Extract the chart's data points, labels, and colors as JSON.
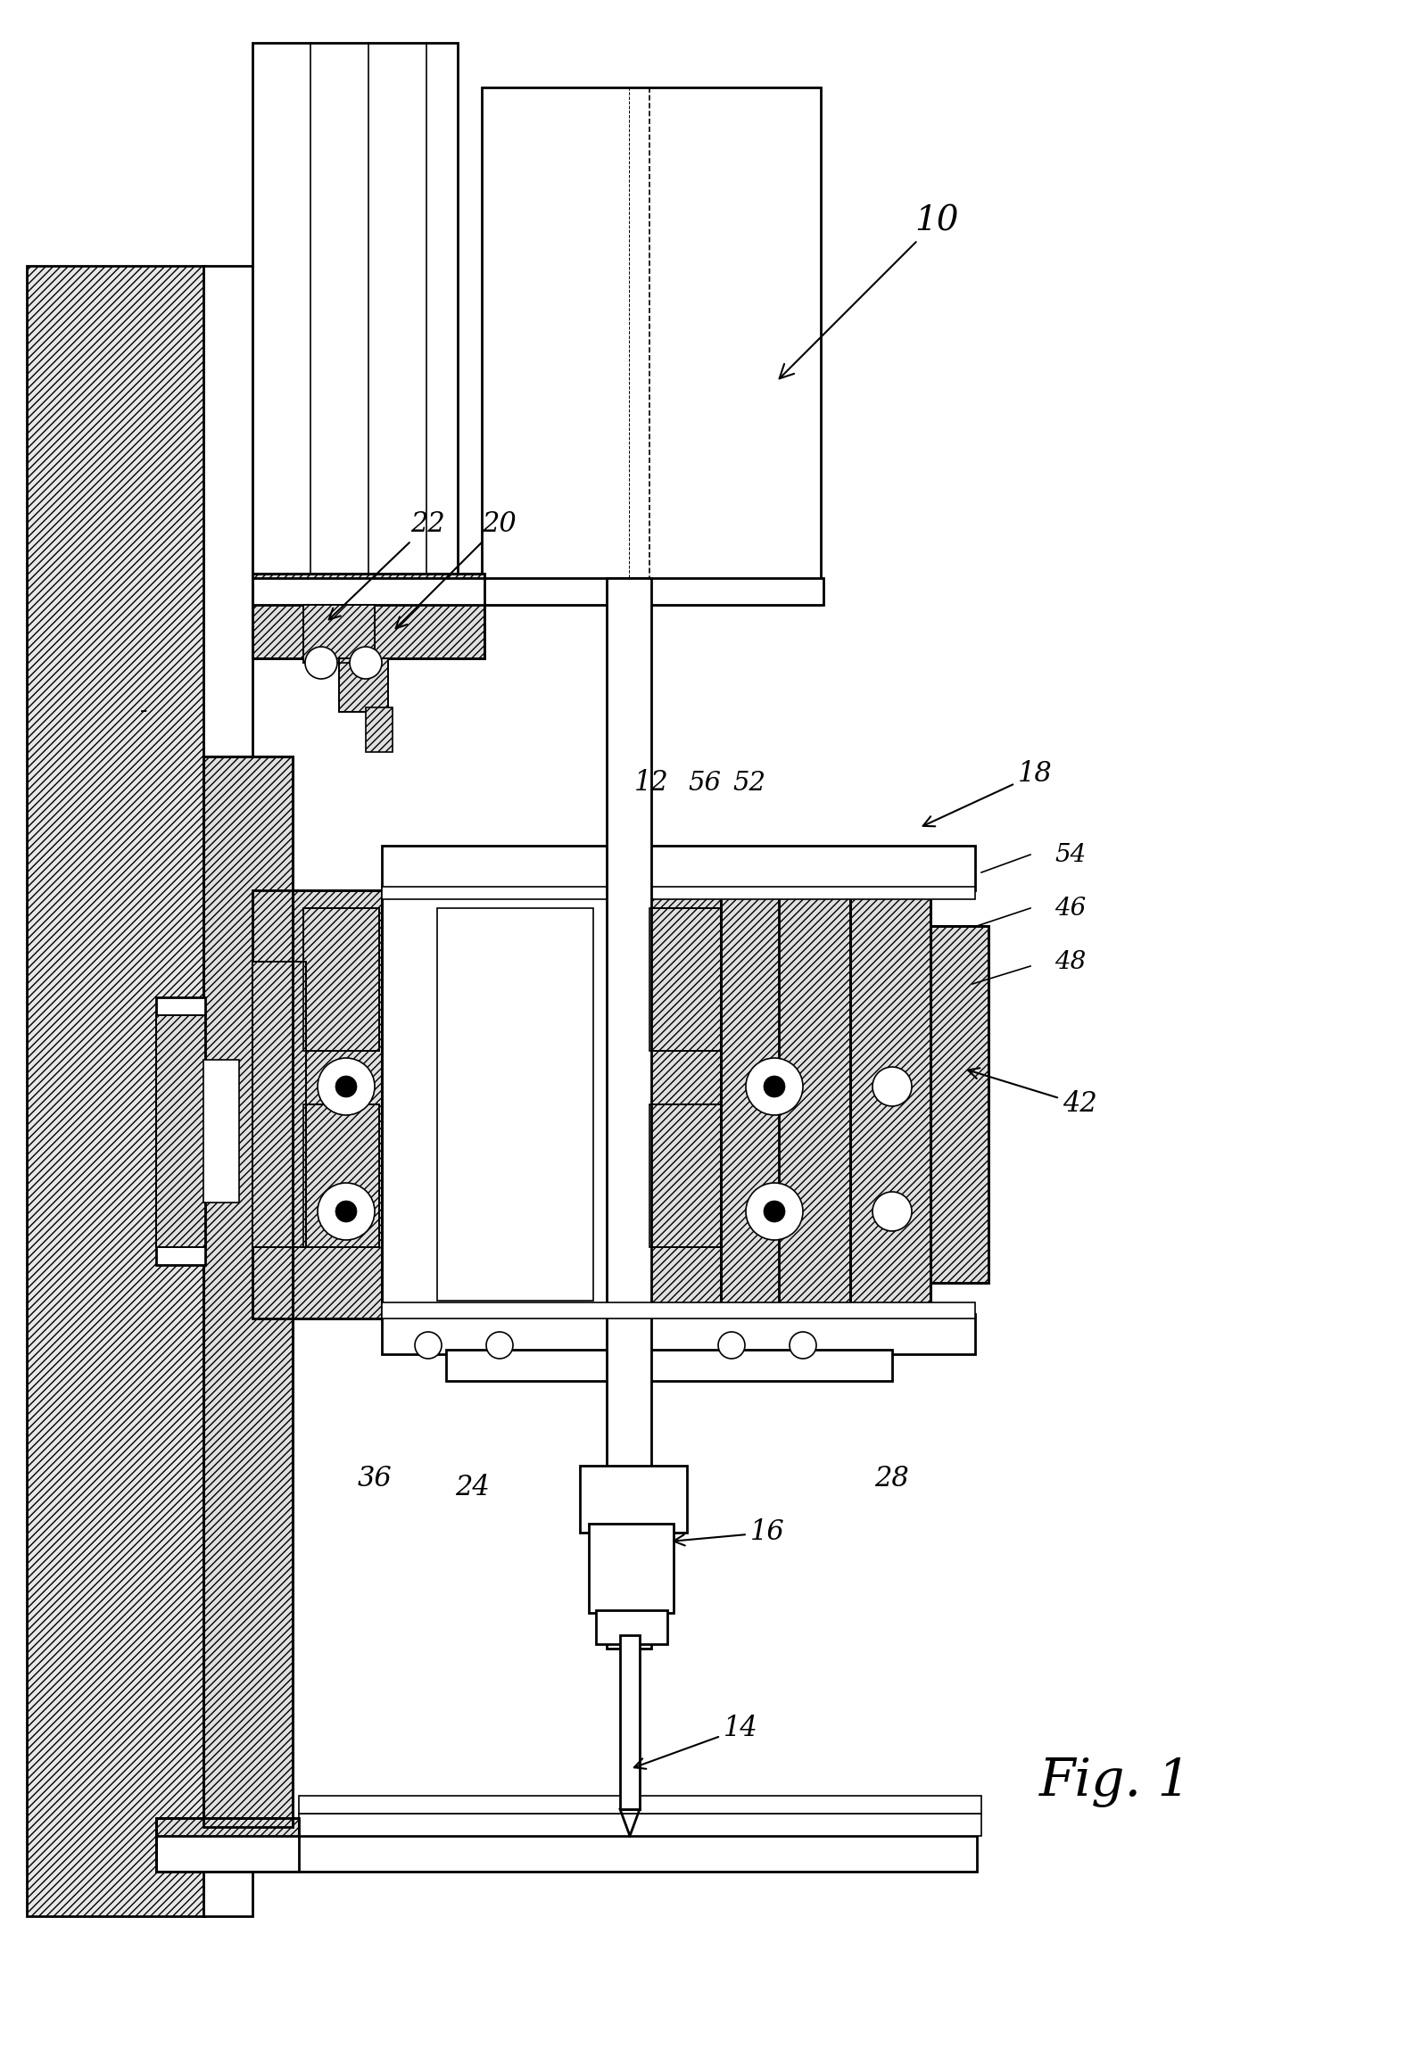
{
  "bg_color": "#ffffff",
  "line_color": "#000000",
  "fig_width": 15.76,
  "fig_height": 22.98,
  "dpi": 100
}
